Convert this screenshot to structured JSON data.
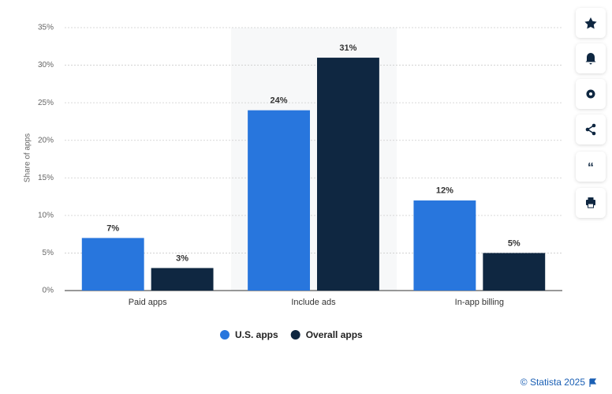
{
  "chart_data": {
    "type": "bar",
    "y_label": "Share of apps",
    "categories": [
      "Paid apps",
      "Include ads",
      "In-app billing"
    ],
    "series": [
      {
        "name": "U.S. apps",
        "color": "#2876dd",
        "values": [
          7,
          24,
          12
        ],
        "value_labels": [
          "7%",
          "24%",
          "12%"
        ]
      },
      {
        "name": "Overall apps",
        "color": "#0f2741",
        "values": [
          3,
          31,
          5
        ],
        "value_labels": [
          "3%",
          "31%",
          "5%"
        ]
      }
    ],
    "ylim": [
      0,
      35
    ],
    "yticks": [
      {
        "value": 0,
        "label": "0%"
      },
      {
        "value": 5,
        "label": "5%"
      },
      {
        "value": 10,
        "label": "10%"
      },
      {
        "value": 15,
        "label": "15%"
      },
      {
        "value": 20,
        "label": "20%"
      },
      {
        "value": 25,
        "label": "25%"
      },
      {
        "value": 30,
        "label": "30%"
      },
      {
        "value": 35,
        "label": "35%"
      }
    ],
    "grid": true,
    "legend": "bottom"
  },
  "credit": "© Statista 2025"
}
